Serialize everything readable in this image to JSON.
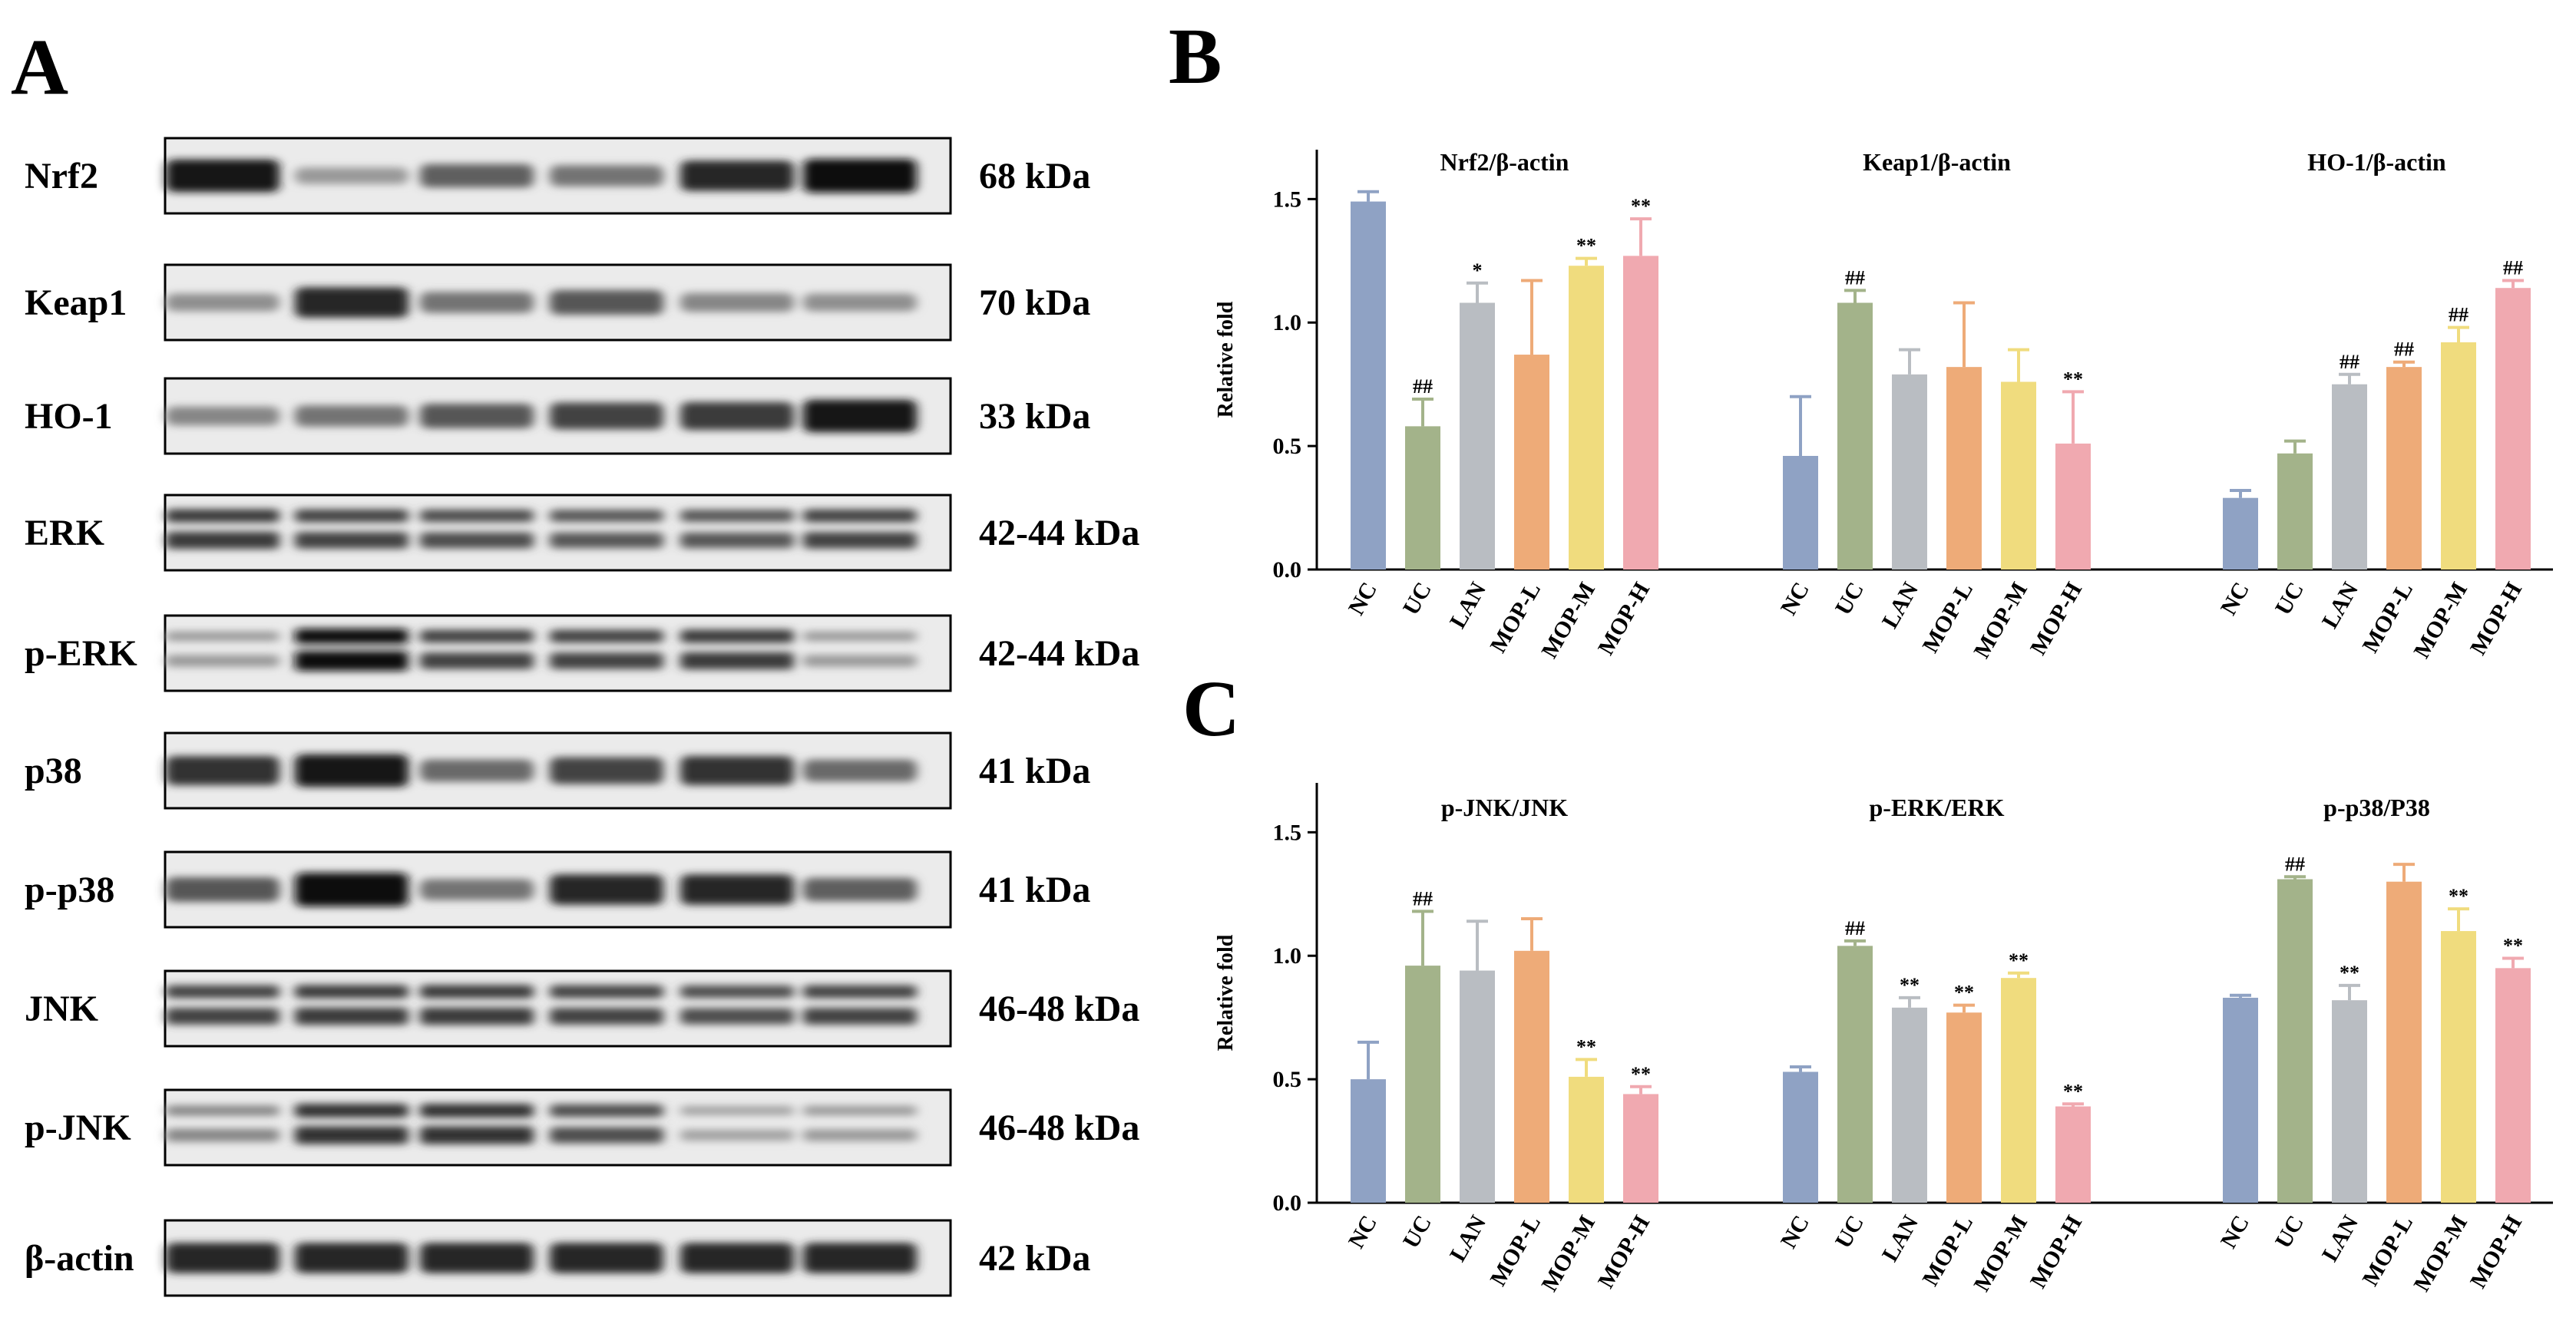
{
  "panels": {
    "a": "A",
    "b": "B",
    "c": "C"
  },
  "blot": {
    "lanes": 6,
    "rows": [
      {
        "label": "Nrf2",
        "kda": "68 kDa",
        "bands": 1,
        "intensity": [
          0.95,
          0.25,
          0.55,
          0.45,
          0.85,
          1.0
        ]
      },
      {
        "label": "Keap1",
        "kda": "70 kDa",
        "bands": 1,
        "intensity": [
          0.3,
          0.85,
          0.45,
          0.6,
          0.35,
          0.3
        ]
      },
      {
        "label": "HO-1",
        "kda": "33 kDa",
        "bands": 1,
        "intensity": [
          0.35,
          0.45,
          0.6,
          0.7,
          0.75,
          0.95
        ]
      },
      {
        "label": "ERK",
        "kda": "42-44 kDa",
        "bands": 2,
        "intensity": [
          0.75,
          0.7,
          0.65,
          0.6,
          0.6,
          0.7
        ]
      },
      {
        "label": "p-ERK",
        "kda": "42-44 kDa",
        "bands": 2,
        "intensity": [
          0.25,
          1.0,
          0.7,
          0.7,
          0.75,
          0.25
        ]
      },
      {
        "label": "p38",
        "kda": "41 kDa",
        "bands": 1,
        "intensity": [
          0.8,
          0.95,
          0.5,
          0.7,
          0.8,
          0.5
        ]
      },
      {
        "label": "p-p38",
        "kda": "41 kDa",
        "bands": 1,
        "intensity": [
          0.6,
          1.0,
          0.45,
          0.85,
          0.85,
          0.55
        ]
      },
      {
        "label": "JNK",
        "kda": "46-48 kDa",
        "bands": 2,
        "intensity": [
          0.7,
          0.75,
          0.75,
          0.7,
          0.65,
          0.7
        ]
      },
      {
        "label": "p-JNK",
        "kda": "46-48 kDa",
        "bands": 2,
        "intensity": [
          0.35,
          0.8,
          0.8,
          0.65,
          0.2,
          0.25
        ]
      },
      {
        "label": "β-actin",
        "kda": "42 kDa",
        "bands": 1,
        "intensity": [
          0.85,
          0.85,
          0.85,
          0.85,
          0.85,
          0.85
        ]
      }
    ]
  },
  "colors": {
    "NC": "#8fa2c4",
    "UC": "#a3b38a",
    "LAN": "#b9bdc2",
    "MOP-L": "#eeab78",
    "MOP-M": "#f0dc7e",
    "MOP-H": "#f0a9b0"
  },
  "chart_data": [
    {
      "type": "bar",
      "ylabel": "Relative fold",
      "ylim": [
        0,
        1.7
      ],
      "yticks": [
        "0.0",
        "0.5",
        "1.0",
        "1.5"
      ],
      "categories": [
        "NC",
        "UC",
        "LAN",
        "MOP-L",
        "MOP-M",
        "MOP-H"
      ],
      "groups": [
        {
          "title": "Nrf2/β-actin",
          "values": [
            1.49,
            0.58,
            1.08,
            0.87,
            1.23,
            1.27
          ],
          "errors": [
            0.04,
            0.11,
            0.08,
            0.3,
            0.03,
            0.15
          ],
          "sig": [
            "",
            "##",
            "*",
            "",
            "**",
            "**"
          ]
        },
        {
          "title": "Keap1/β-actin",
          "values": [
            0.46,
            1.08,
            0.79,
            0.82,
            0.76,
            0.51
          ],
          "errors": [
            0.24,
            0.05,
            0.1,
            0.26,
            0.13,
            0.21
          ],
          "sig": [
            "",
            "##",
            "",
            "",
            "",
            "**"
          ]
        },
        {
          "title": "HO-1/β-actin",
          "values": [
            0.29,
            0.47,
            0.75,
            0.82,
            0.92,
            1.14
          ],
          "errors": [
            0.03,
            0.05,
            0.04,
            0.02,
            0.06,
            0.03
          ],
          "sig": [
            "",
            "",
            "##",
            "##",
            "##",
            "##"
          ]
        }
      ]
    },
    {
      "type": "bar",
      "ylabel": "Relative fold",
      "ylim": [
        0,
        1.7
      ],
      "yticks": [
        "0.0",
        "0.5",
        "1.0",
        "1.5"
      ],
      "categories": [
        "NC",
        "UC",
        "LAN",
        "MOP-L",
        "MOP-M",
        "MOP-H"
      ],
      "groups": [
        {
          "title": "p-JNK/JNK",
          "values": [
            0.5,
            0.96,
            0.94,
            1.02,
            0.51,
            0.44
          ],
          "errors": [
            0.15,
            0.22,
            0.2,
            0.13,
            0.07,
            0.03
          ],
          "sig": [
            "",
            "##",
            "",
            "",
            "**",
            "**"
          ]
        },
        {
          "title": "p-ERK/ERK",
          "values": [
            0.53,
            1.04,
            0.79,
            0.77,
            0.91,
            0.39
          ],
          "errors": [
            0.02,
            0.02,
            0.04,
            0.03,
            0.02,
            0.01
          ],
          "sig": [
            "",
            "##",
            "**",
            "**",
            "**",
            "**"
          ]
        },
        {
          "title": "p-p38/P38",
          "values": [
            0.83,
            1.31,
            0.82,
            1.3,
            1.1,
            0.95
          ],
          "errors": [
            0.01,
            0.01,
            0.06,
            0.07,
            0.09,
            0.04
          ],
          "sig": [
            "",
            "##",
            "**",
            "",
            "**",
            "**"
          ]
        }
      ]
    }
  ]
}
